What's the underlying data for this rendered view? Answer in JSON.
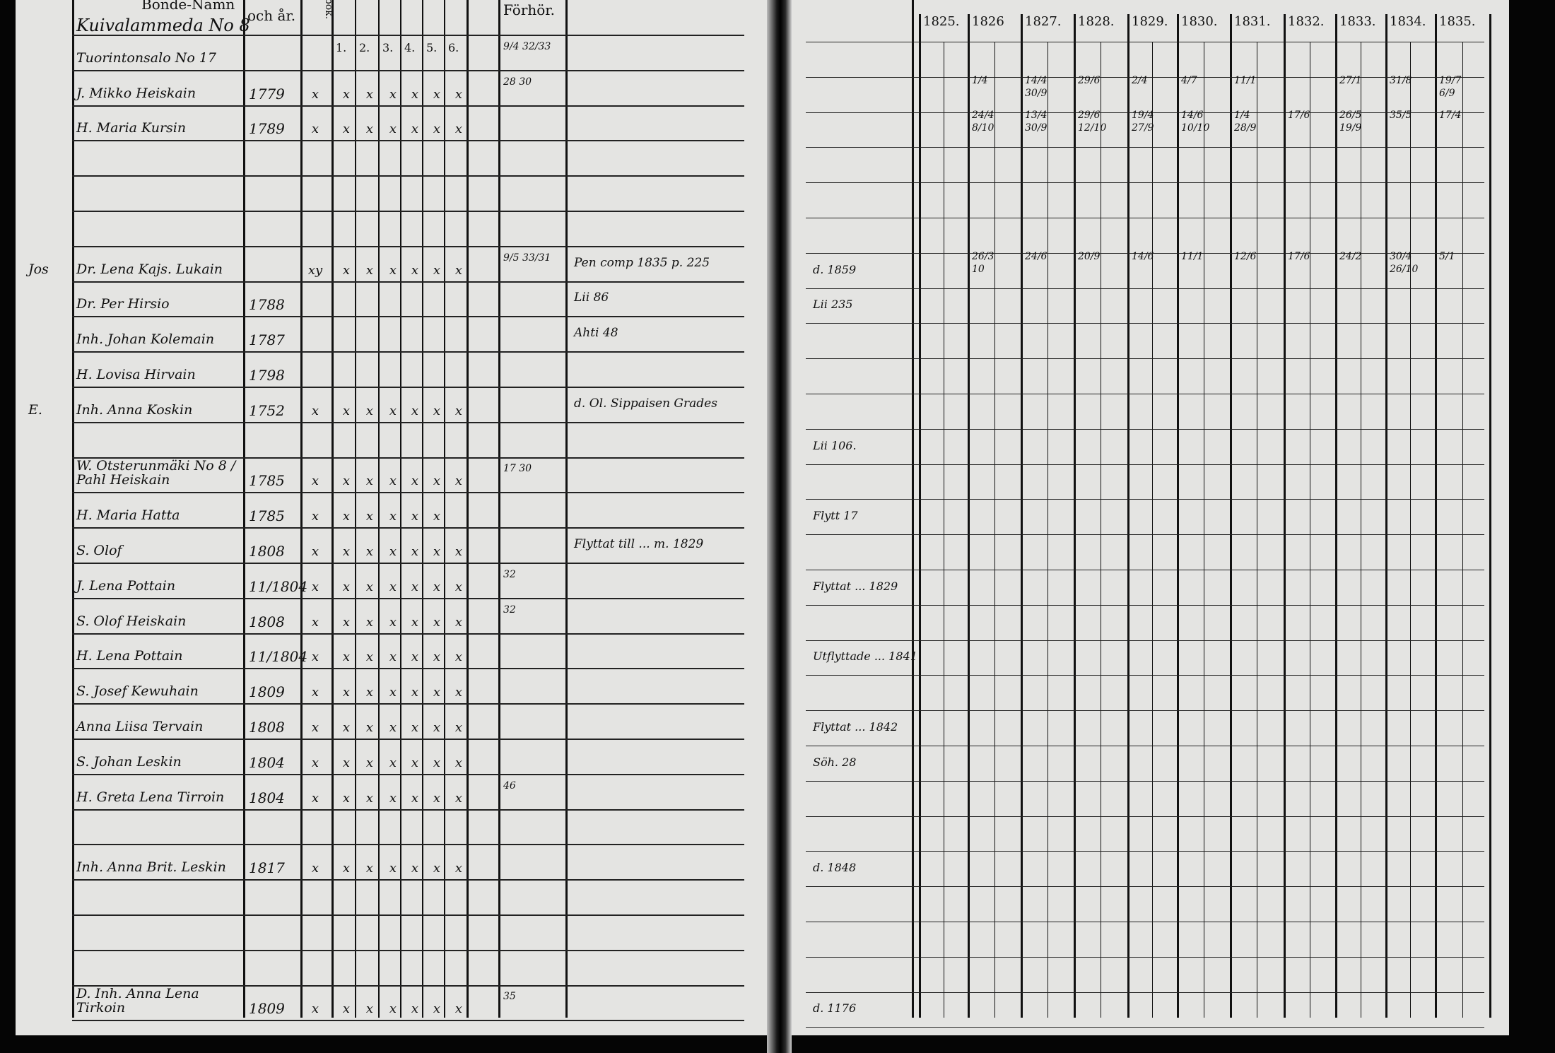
{
  "header": {
    "name_col": "Bonde-Namn",
    "born_col": "och år.",
    "bok_col": "bok.",
    "numbered_cols": [
      "1.",
      "2.",
      "3.",
      "4.",
      "5.",
      "6."
    ],
    "forhor_col": "Förhör.",
    "years": [
      "1825.",
      "1826",
      "1827.",
      "1828.",
      "1829.",
      "1830.",
      "1831.",
      "1832.",
      "1833.",
      "1834.",
      "1835."
    ]
  },
  "village_heading": "Kuivalammeda No 8",
  "rows": [
    {
      "name": "Tuorintonsalo No 17",
      "forhor": "9/4 32/33"
    },
    {
      "name": "J. Mikko Heiskain",
      "born": "1779",
      "marks": [
        "x",
        "x",
        "x",
        "x",
        "x",
        "x",
        "x"
      ],
      "forhor": "28 30",
      "years": {
        "1826": [
          "1/4"
        ],
        "1827": [
          "14/4",
          "30/9"
        ],
        "1828": [
          "29/6"
        ],
        "1829": [
          "2/4"
        ],
        "1830": [
          "4/7"
        ],
        "1831": [
          "11/1"
        ],
        "1833": [
          "27/1"
        ],
        "1834": [
          "31/8"
        ],
        "1835": [
          "19/7",
          "6/9"
        ]
      }
    },
    {
      "name": "H. Maria Kursin",
      "born": "1789",
      "marks": [
        "x",
        "x",
        "x",
        "x",
        "x",
        "x",
        "x"
      ],
      "years": {
        "1826": [
          "24/4",
          "8/10"
        ],
        "1827": [
          "13/4",
          "30/9"
        ],
        "1828": [
          "29/6",
          "12/10"
        ],
        "1829": [
          "19/4",
          "27/9"
        ],
        "1830": [
          "14/6",
          "10/10"
        ],
        "1831": [
          "1/4",
          "28/9"
        ],
        "1832": [
          "17/6"
        ],
        "1833": [
          "26/5",
          "19/9"
        ],
        "1834": [
          "35/5"
        ],
        "1835": [
          "17/4"
        ]
      }
    },
    {},
    {},
    {},
    {
      "margin": "Jos",
      "name": "Dr. Lena Kajs. Lukain",
      "marks": [
        "xy",
        "x",
        "x",
        "x",
        "x",
        "x",
        "x"
      ],
      "forhor": "9/5 33/31",
      "note": "Pen comp 1835 p. 225",
      "right_note": "d. 1859",
      "years": {
        "1826": [
          "26/3",
          "10"
        ],
        "1827": [
          "24/6"
        ],
        "1828": [
          "20/9"
        ],
        "1829": [
          "14/6"
        ],
        "1830": [
          "11/1"
        ],
        "1831": [
          "12/6"
        ],
        "1832": [
          "17/6"
        ],
        "1833": [
          "24/2"
        ],
        "1834": [
          "30/4",
          "26/10"
        ],
        "1835": [
          "5/1"
        ]
      }
    },
    {
      "name": "Dr. Per Hirsio",
      "born": "1788",
      "note": "Lii 86",
      "right_note": "Lii 235"
    },
    {
      "name": "Inh. Johan Kolemain",
      "born": "1787",
      "note": "Ahti 48"
    },
    {
      "name": "H. Lovisa Hirvain",
      "born": "1798"
    },
    {
      "margin": "E.",
      "name": "Inh. Anna Koskin",
      "born": "1752",
      "marks": [
        "x",
        "x",
        "x",
        "x",
        "x",
        "x",
        "x"
      ],
      "note": "d. Ol. Sippaisen Grades"
    },
    {
      "right_note": "Lii 106."
    },
    {
      "name": "W. Otsterunmäki No 8 / Pahl Heiskain",
      "born": "1785",
      "marks": [
        "x",
        "x",
        "x",
        "x",
        "x",
        "x",
        "x"
      ],
      "forhor": "17 30"
    },
    {
      "name": "H. Maria Hatta",
      "born": "1785",
      "marks": [
        "x",
        "x",
        "x",
        "x",
        "x",
        "x",
        ""
      ],
      "right_note": "Flytt 17"
    },
    {
      "name": "S. Olof",
      "born": "1808",
      "marks": [
        "x",
        "x",
        "x",
        "x",
        "x",
        "x",
        "x"
      ],
      "note": "Flyttat till ... m. 1829"
    },
    {
      "name": "J. Lena Pottain",
      "born": "11/1804",
      "marks": [
        "x",
        "x",
        "x",
        "x",
        "x",
        "x",
        "x"
      ],
      "forhor": "32",
      "right_note": "Flyttat ... 1829"
    },
    {
      "name": "S. Olof Heiskain",
      "born": "1808",
      "marks": [
        "x",
        "x",
        "x",
        "x",
        "x",
        "x",
        "x"
      ],
      "forhor": "32"
    },
    {
      "name": "H. Lena Pottain",
      "born": "11/1804",
      "marks": [
        "x",
        "x",
        "x",
        "x",
        "x",
        "x",
        "x"
      ],
      "right_note": "Utflyttade ... 1841"
    },
    {
      "name": "S. Josef Kewuhain",
      "born": "1809",
      "marks": [
        "x",
        "x",
        "x",
        "x",
        "x",
        "x",
        "x"
      ]
    },
    {
      "name": "Anna Liisa Tervain",
      "born": "1808",
      "marks": [
        "x",
        "x",
        "x",
        "x",
        "x",
        "x",
        "x"
      ],
      "right_note": "Flyttat ... 1842"
    },
    {
      "name": "S. Johan Leskin",
      "born": "1804",
      "marks": [
        "x",
        "x",
        "x",
        "x",
        "x",
        "x",
        "x"
      ],
      "right_note": "Söh. 28"
    },
    {
      "name": "H. Greta Lena Tirroin",
      "born": "1804",
      "marks": [
        "x",
        "x",
        "x",
        "x",
        "x",
        "x",
        "x"
      ],
      "forhor": "46"
    },
    {},
    {
      "name": "Inh. Anna Brit. Leskin",
      "born": "1817",
      "marks": [
        "x",
        "x",
        "x",
        "x",
        "x",
        "x",
        "x"
      ],
      "right_note": "d. 1848"
    },
    {},
    {},
    {},
    {
      "name": "D. Inh. Anna Lena Tirkoin",
      "born": "1809",
      "marks": [
        "x",
        "x",
        "x",
        "x",
        "x",
        "x",
        "x"
      ],
      "forhor": "35",
      "right_note": "d. 1176"
    }
  ],
  "colors": {
    "paper": "#e4e4e2",
    "ink": "#111111",
    "background": "#050505"
  }
}
